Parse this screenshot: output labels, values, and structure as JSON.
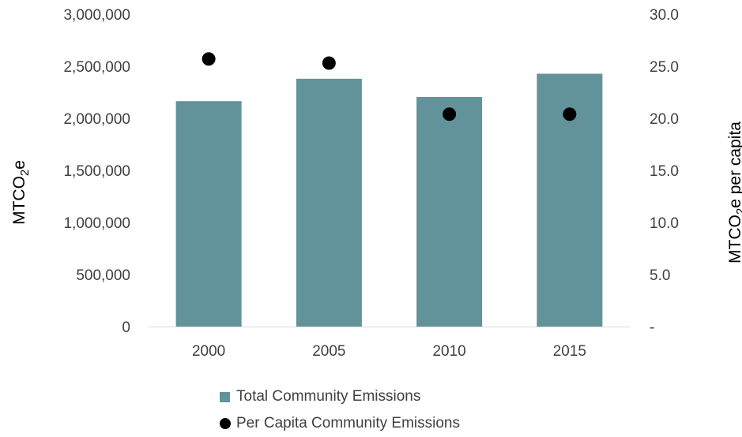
{
  "colors": {
    "bar": "#62939a",
    "dot": "#000000",
    "baseline": "#d9d9d9"
  },
  "chart_data": {
    "type": "bar",
    "categories": [
      "2000",
      "2005",
      "2010",
      "2015"
    ],
    "series": [
      {
        "name": "Total Community Emissions",
        "kind": "bar",
        "axis": "left",
        "values": [
          2165000,
          2380000,
          2205000,
          2428000
        ]
      },
      {
        "name": "Per Capita Community Emissions",
        "kind": "scatter",
        "axis": "right",
        "values": [
          25.7,
          25.3,
          20.4,
          20.4
        ]
      }
    ],
    "y_left": {
      "ylim": [
        0,
        3000000
      ],
      "ticks": [
        "0",
        "500,000",
        "1,000,000",
        "1,500,000",
        "2,000,000",
        "2,500,000",
        "3,000,000"
      ],
      "label_main": "MTCO",
      "label_sub": "2",
      "label_rest": "e"
    },
    "y_right": {
      "ylim": [
        0,
        30
      ],
      "ticks": [
        "-",
        "5.0",
        "10.0",
        "15.0",
        "20.0",
        "25.0",
        "30.0"
      ],
      "label_main": "MTCO",
      "label_sub": "2",
      "label_rest": "e per capita"
    },
    "legend_position": "bottom",
    "grid": false
  }
}
